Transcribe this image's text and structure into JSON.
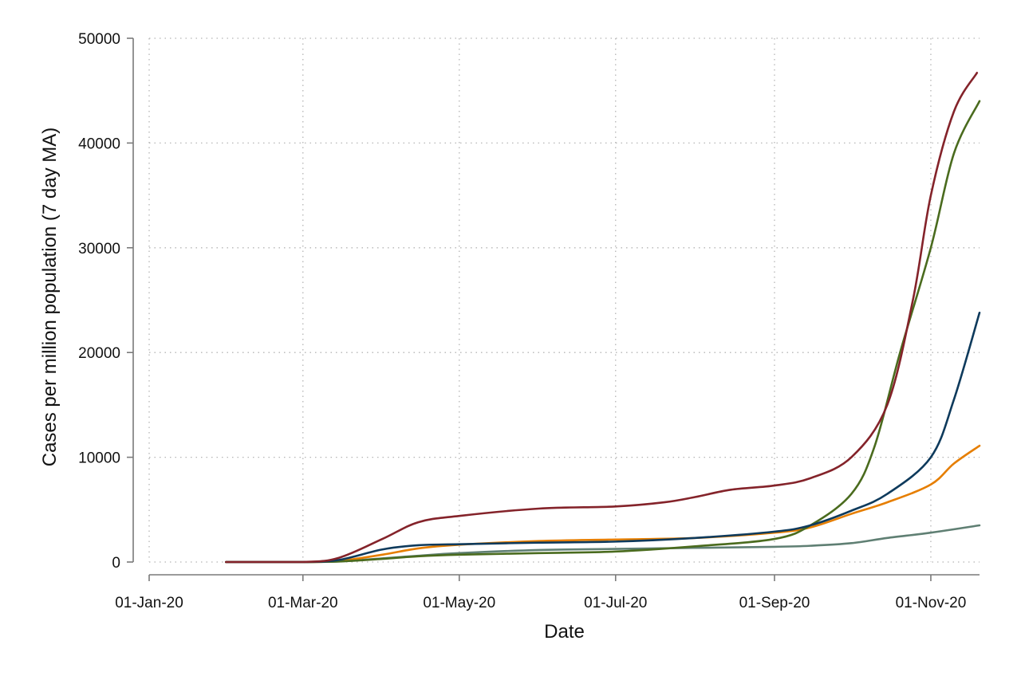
{
  "chart_data": {
    "type": "line",
    "title": "",
    "xlabel": "Date",
    "ylabel": "Cases per million population (7 day MA)",
    "x_tick_labels": [
      "01-Jan-20",
      "01-Mar-20",
      "01-May-20",
      "01-Jul-20",
      "01-Sep-20",
      "01-Nov-20"
    ],
    "x_ticks": [
      "2020-01-01",
      "2020-03-01",
      "2020-05-01",
      "2020-07-01",
      "2020-09-01",
      "2020-11-01"
    ],
    "xlim": [
      "2020-01-01",
      "2020-11-20"
    ],
    "y_tick_labels": [
      "0",
      "10000",
      "20000",
      "30000",
      "40000",
      "50000"
    ],
    "y_ticks": [
      0,
      10000,
      20000,
      30000,
      40000,
      50000
    ],
    "ylim": [
      0,
      50000
    ],
    "grid": true,
    "legend": "none",
    "series": [
      {
        "color": "#5f7f73",
        "points": [
          [
            "2020-01-31",
            0
          ],
          [
            "2020-03-01",
            0
          ],
          [
            "2020-03-15",
            50
          ],
          [
            "2020-04-01",
            350
          ],
          [
            "2020-04-15",
            600
          ],
          [
            "2020-05-01",
            850
          ],
          [
            "2020-06-01",
            1150
          ],
          [
            "2020-07-01",
            1250
          ],
          [
            "2020-08-01",
            1350
          ],
          [
            "2020-09-01",
            1450
          ],
          [
            "2020-09-15",
            1550
          ],
          [
            "2020-10-01",
            1800
          ],
          [
            "2020-10-15",
            2300
          ],
          [
            "2020-11-01",
            2800
          ],
          [
            "2020-11-20",
            3500
          ]
        ]
      },
      {
        "color": "#e67e00",
        "points": [
          [
            "2020-01-31",
            0
          ],
          [
            "2020-03-01",
            0
          ],
          [
            "2020-03-15",
            100
          ],
          [
            "2020-04-01",
            700
          ],
          [
            "2020-04-15",
            1300
          ],
          [
            "2020-05-01",
            1650
          ],
          [
            "2020-06-01",
            2000
          ],
          [
            "2020-07-01",
            2150
          ],
          [
            "2020-08-01",
            2300
          ],
          [
            "2020-09-01",
            2800
          ],
          [
            "2020-09-15",
            3300
          ],
          [
            "2020-10-01",
            4600
          ],
          [
            "2020-10-15",
            5700
          ],
          [
            "2020-11-01",
            7400
          ],
          [
            "2020-11-10",
            9400
          ],
          [
            "2020-11-20",
            11100
          ]
        ]
      },
      {
        "color": "#4a6b1e",
        "points": [
          [
            "2020-01-31",
            0
          ],
          [
            "2020-03-01",
            0
          ],
          [
            "2020-03-15",
            50
          ],
          [
            "2020-04-01",
            300
          ],
          [
            "2020-04-15",
            550
          ],
          [
            "2020-05-01",
            700
          ],
          [
            "2020-06-01",
            850
          ],
          [
            "2020-07-01",
            1000
          ],
          [
            "2020-08-01",
            1500
          ],
          [
            "2020-09-01",
            2200
          ],
          [
            "2020-09-15",
            3500
          ],
          [
            "2020-10-01",
            6500
          ],
          [
            "2020-10-10",
            11000
          ],
          [
            "2020-10-20",
            20000
          ],
          [
            "2020-11-01",
            30000
          ],
          [
            "2020-11-10",
            39000
          ],
          [
            "2020-11-20",
            44000
          ]
        ]
      },
      {
        "color": "#0e3a5c",
        "points": [
          [
            "2020-01-31",
            0
          ],
          [
            "2020-03-01",
            0
          ],
          [
            "2020-03-15",
            200
          ],
          [
            "2020-04-01",
            1200
          ],
          [
            "2020-04-15",
            1600
          ],
          [
            "2020-05-01",
            1700
          ],
          [
            "2020-06-01",
            1850
          ],
          [
            "2020-07-01",
            1950
          ],
          [
            "2020-08-01",
            2300
          ],
          [
            "2020-09-01",
            2900
          ],
          [
            "2020-09-15",
            3500
          ],
          [
            "2020-10-01",
            4900
          ],
          [
            "2020-10-15",
            6500
          ],
          [
            "2020-11-01",
            10000
          ],
          [
            "2020-11-10",
            15500
          ],
          [
            "2020-11-20",
            23800
          ]
        ]
      },
      {
        "color": "#84232a",
        "points": [
          [
            "2020-01-31",
            0
          ],
          [
            "2020-03-01",
            0
          ],
          [
            "2020-03-15",
            400
          ],
          [
            "2020-04-01",
            2200
          ],
          [
            "2020-04-15",
            3800
          ],
          [
            "2020-05-01",
            4400
          ],
          [
            "2020-06-01",
            5100
          ],
          [
            "2020-07-01",
            5300
          ],
          [
            "2020-07-20",
            5700
          ],
          [
            "2020-08-01",
            6200
          ],
          [
            "2020-08-15",
            6900
          ],
          [
            "2020-09-01",
            7300
          ],
          [
            "2020-09-15",
            8000
          ],
          [
            "2020-10-01",
            10000
          ],
          [
            "2020-10-15",
            15000
          ],
          [
            "2020-10-25",
            25000
          ],
          [
            "2020-11-01",
            35000
          ],
          [
            "2020-11-10",
            43000
          ],
          [
            "2020-11-19",
            46700
          ]
        ]
      }
    ]
  }
}
